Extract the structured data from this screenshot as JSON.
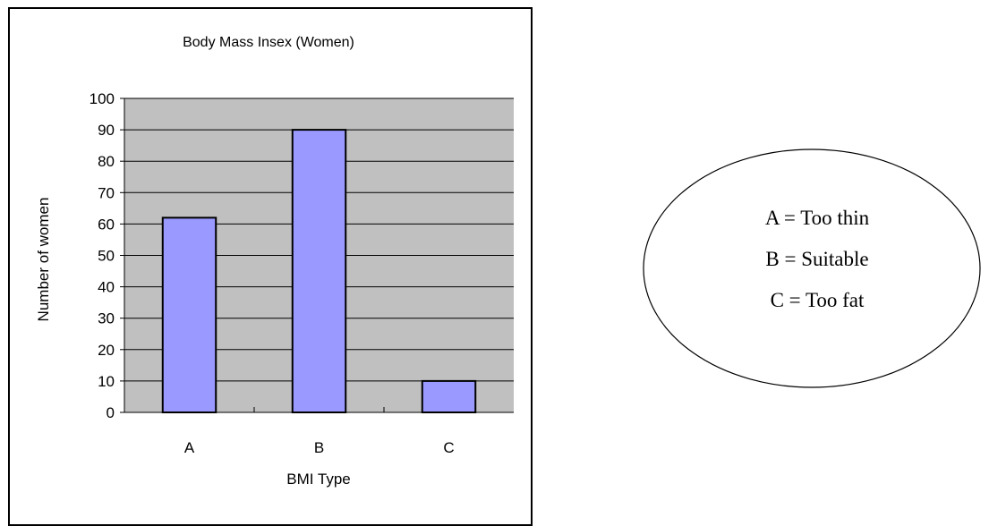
{
  "chart_data": {
    "type": "bar",
    "title": "Body Mass Insex (Women)",
    "xlabel": "BMI Type",
    "ylabel": "Number of women",
    "categories": [
      "A",
      "B",
      "C"
    ],
    "values": [
      62,
      90,
      10
    ],
    "ylim": [
      0,
      100
    ],
    "yticks": [
      0,
      10,
      20,
      30,
      40,
      50,
      60,
      70,
      80,
      90,
      100
    ],
    "grid": true,
    "bar_color": "#9999ff",
    "plot_background": "#c0c0c0",
    "legend": {
      "placement": "right",
      "shape": "ellipse",
      "entries": [
        "A = Too thin",
        "B = Suitable",
        "C = Too fat"
      ]
    }
  }
}
